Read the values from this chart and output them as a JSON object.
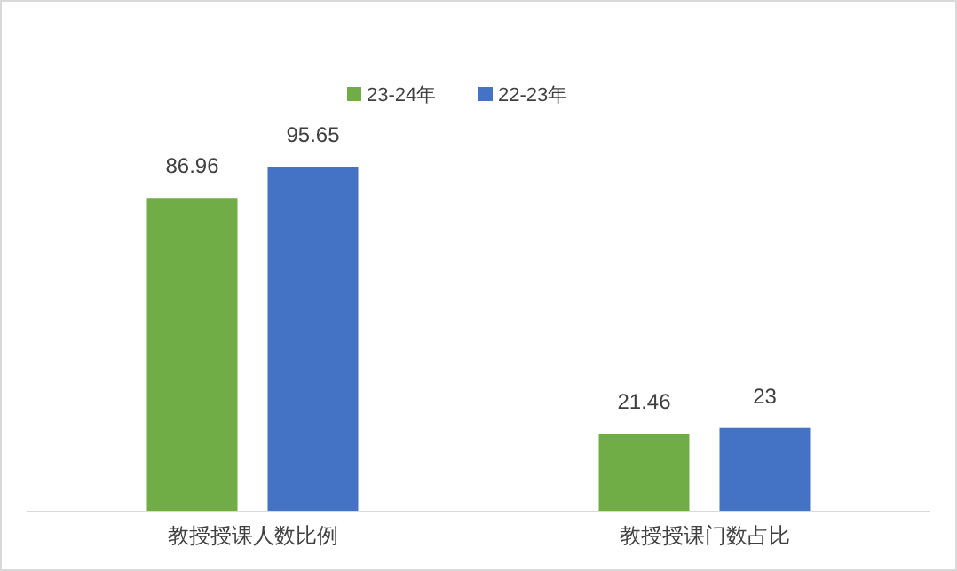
{
  "chart_data": {
    "type": "bar",
    "categories": [
      "教授授课人数比例",
      "教授授课门数占比"
    ],
    "series": [
      {
        "name": "23-24年",
        "color": "#70ad47",
        "values": [
          86.96,
          21.46
        ]
      },
      {
        "name": "22-23年",
        "color": "#4472c4",
        "values": [
          95.65,
          23
        ]
      }
    ],
    "data_labels": true,
    "legend": "top"
  }
}
